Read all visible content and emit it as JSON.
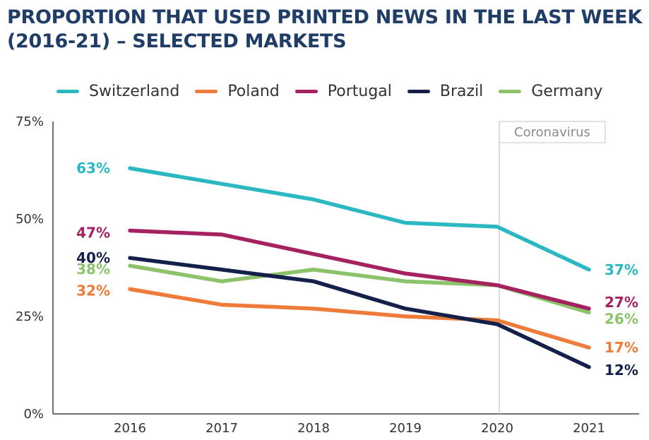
{
  "title": "PROPORTION THAT USED PRINTED NEWS IN THE LAST WEEK (2016-21) – SELECTED MARKETS",
  "chart_data": {
    "type": "line",
    "title": "PROPORTION THAT USED PRINTED NEWS IN THE LAST WEEK (2016-21) – SELECTED MARKETS",
    "x": [
      "2016",
      "2017",
      "2018",
      "2019",
      "2020",
      "2021"
    ],
    "ylim": [
      0,
      75
    ],
    "yticks": [
      "0%",
      "25%",
      "50%",
      "75%"
    ],
    "ytick_values": [
      0,
      25,
      50,
      75
    ],
    "legend_position": "top",
    "grid": false,
    "annotation": {
      "label": "Coronavirus",
      "at_x": "2020"
    },
    "series": [
      {
        "name": "Switzerland",
        "color": "#2bb8c3",
        "values": [
          63,
          59,
          55,
          49,
          48,
          37
        ],
        "start_label": "63%",
        "end_label": "37%"
      },
      {
        "name": "Poland",
        "color": "#ee7b3a",
        "values": [
          32,
          28,
          27,
          25,
          24,
          17
        ],
        "start_label": "32%",
        "end_label": "17%"
      },
      {
        "name": "Portugal",
        "color": "#a3225f",
        "values": [
          47,
          46,
          41,
          36,
          33,
          27
        ],
        "start_label": "47%",
        "end_label": "27%"
      },
      {
        "name": "Brazil",
        "color": "#14204a",
        "values": [
          40,
          37,
          34,
          27,
          23,
          12
        ],
        "start_label": "40%",
        "end_label": "12%"
      },
      {
        "name": "Germany",
        "color": "#8cc36a",
        "values": [
          38,
          34,
          37,
          34,
          33,
          26
        ],
        "start_label": "38%",
        "end_label": "26%"
      }
    ]
  }
}
